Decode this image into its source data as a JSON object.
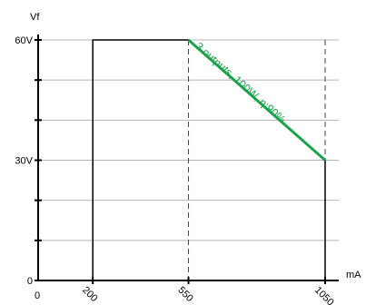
{
  "chart_data": {
    "type": "line",
    "ylabel": "Vf",
    "xlabel": "mA",
    "xlim": [
      0,
      1050
    ],
    "ylim": [
      0,
      60
    ],
    "x_ticks": [
      {
        "value": 0,
        "label": "0"
      },
      {
        "value": 200,
        "label": "200"
      },
      {
        "value": 550,
        "label": "550"
      },
      {
        "value": 1050,
        "label": "1050"
      }
    ],
    "y_ticks": [
      {
        "value": 0,
        "label": "0"
      },
      {
        "value": 30,
        "label": "30V"
      },
      {
        "value": 60,
        "label": "60V"
      }
    ],
    "grid": true,
    "dashed_verticals": [
      550,
      1050
    ],
    "series": [
      {
        "name": "",
        "color": "#000000",
        "points": [
          [
            200,
            0
          ],
          [
            200,
            60
          ],
          [
            550,
            60
          ]
        ]
      },
      {
        "name": "",
        "color": "#000000",
        "points": [
          [
            1050,
            30
          ],
          [
            1050,
            0
          ]
        ]
      },
      {
        "name": "3 outputs, 100W, η:90%",
        "color": "#1aa34a",
        "points": [
          [
            550,
            60
          ],
          [
            1050,
            30
          ]
        ]
      }
    ]
  }
}
